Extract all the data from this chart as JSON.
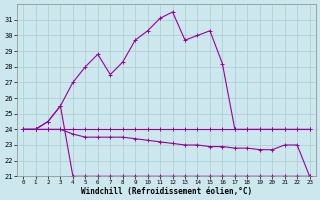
{
  "xlabel": "Windchill (Refroidissement éolien,°C)",
  "background_color": "#cce8ee",
  "grid_color": "#aacccc",
  "line_color": "#990099",
  "xlim": [
    0,
    23
  ],
  "ylim": [
    21,
    32
  ],
  "yticks": [
    21,
    22,
    23,
    24,
    25,
    26,
    27,
    28,
    29,
    30,
    31
  ],
  "xticks": [
    0,
    1,
    2,
    3,
    4,
    5,
    6,
    7,
    8,
    9,
    10,
    11,
    12,
    13,
    14,
    15,
    16,
    17,
    18,
    19,
    20,
    21,
    22,
    23
  ],
  "series": [
    {
      "name": "main_curve",
      "x": [
        0,
        1,
        2,
        3,
        4,
        5,
        6,
        7,
        8,
        9,
        10,
        11,
        12,
        13,
        14,
        15,
        16,
        17,
        18,
        19,
        20,
        21,
        22,
        23
      ],
      "y": [
        24.0,
        24.0,
        24.5,
        25.5,
        27.0,
        28.0,
        28.8,
        27.5,
        28.3,
        29.7,
        30.3,
        31.1,
        31.5,
        29.7,
        30.0,
        30.3,
        28.2,
        24.0,
        24.0,
        24.0,
        24.0,
        24.0,
        24.0,
        24.0
      ],
      "linestyle": "solid",
      "marker": "+"
    },
    {
      "name": "flat_24",
      "x": [
        0,
        1,
        2,
        3,
        4,
        5,
        6,
        7,
        8,
        9,
        10,
        11,
        12,
        13,
        14,
        15,
        16,
        17,
        18,
        19,
        20,
        21,
        22,
        23
      ],
      "y": [
        24.0,
        24.0,
        24.0,
        24.0,
        24.0,
        24.0,
        24.0,
        24.0,
        24.0,
        24.0,
        24.0,
        24.0,
        24.0,
        24.0,
        24.0,
        24.0,
        24.0,
        24.0,
        24.0,
        24.0,
        24.0,
        24.0,
        24.0,
        24.0
      ],
      "linestyle": "solid",
      "marker": "+"
    },
    {
      "name": "declining_23",
      "x": [
        0,
        1,
        2,
        3,
        4,
        5,
        6,
        7,
        8,
        9,
        10,
        11,
        12,
        13,
        14,
        15,
        16,
        17,
        18,
        19,
        20,
        21,
        22,
        23
      ],
      "y": [
        24.0,
        24.0,
        24.0,
        24.0,
        23.7,
        23.5,
        23.5,
        23.5,
        23.5,
        23.4,
        23.3,
        23.2,
        23.1,
        23.0,
        23.0,
        22.9,
        22.9,
        22.8,
        22.8,
        22.7,
        22.7,
        23.0,
        23.0,
        21.0
      ],
      "linestyle": "solid",
      "marker": "+"
    },
    {
      "name": "bottom_21",
      "x": [
        0,
        1,
        2,
        3,
        4,
        5,
        6,
        7,
        8,
        9,
        10,
        11,
        12,
        13,
        14,
        15,
        16,
        17,
        18,
        19,
        20,
        21,
        22,
        23
      ],
      "y": [
        24.0,
        24.0,
        24.5,
        25.5,
        21.0,
        21.0,
        21.0,
        21.0,
        21.0,
        21.0,
        21.0,
        21.0,
        21.0,
        21.0,
        21.0,
        21.0,
        21.0,
        21.0,
        21.0,
        21.0,
        21.0,
        21.0,
        21.0,
        21.0
      ],
      "linestyle": "solid",
      "marker": "+"
    }
  ]
}
